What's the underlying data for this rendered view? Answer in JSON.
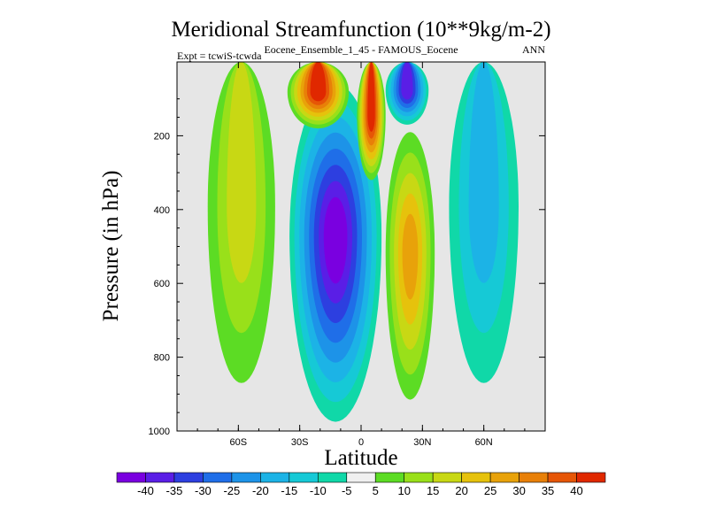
{
  "chart_data": {
    "type": "contour",
    "title": "Meridional Streamfunction (10**9kg/m-2)",
    "subtitle": "Eocene_Ensemble_1_45 - FAMOUS_Eocene",
    "experiment_label": "Expt = tcwiS-tcwda",
    "season_label": "ANN",
    "xlabel": "Latitude",
    "ylabel": "Pressure (in hPa)",
    "xlim": [
      -90,
      90
    ],
    "ylim": [
      0,
      1000
    ],
    "y_reversed": true,
    "x_ticks": [
      {
        "value": -60,
        "label": "60S"
      },
      {
        "value": -30,
        "label": "30S"
      },
      {
        "value": 0,
        "label": "0"
      },
      {
        "value": 30,
        "label": "30N"
      },
      {
        "value": 60,
        "label": "60N"
      }
    ],
    "y_ticks": [
      {
        "value": 200,
        "label": "200"
      },
      {
        "value": 400,
        "label": "400"
      },
      {
        "value": 600,
        "label": "600"
      },
      {
        "value": 800,
        "label": "800"
      },
      {
        "value": 1000,
        "label": "1000"
      }
    ],
    "colorbar": {
      "labels": [
        "-40",
        "-35",
        "-30",
        "-25",
        "-20",
        "-15",
        "-10",
        "-5",
        "5",
        "10",
        "15",
        "20",
        "25",
        "30",
        "35",
        "40"
      ],
      "colors": [
        "#7a00e0",
        "#5a1ee6",
        "#2d3fe0",
        "#1f6ee8",
        "#1d93e8",
        "#1cb3e6",
        "#16c9d6",
        "#10d8a8",
        "#f0f0f0",
        "#5cdc24",
        "#99e01a",
        "#c8d814",
        "#e6c20c",
        "#e8a20a",
        "#e88008",
        "#e65606",
        "#e02800"
      ]
    },
    "cells": [
      {
        "name": "south-outer-cell",
        "sign": "positive",
        "peak": 15,
        "lat_range": [
          -75,
          -42
        ],
        "pressure_range": [
          0,
          870
        ]
      },
      {
        "name": "south-hadley-cell",
        "sign": "negative",
        "peak": -40,
        "lat_range": [
          -35,
          10
        ],
        "pressure_range": [
          60,
          975
        ]
      },
      {
        "name": "upper-south-positive-cell",
        "sign": "positive",
        "peak": 40,
        "lat_range": [
          -36,
          -6
        ],
        "pressure_range": [
          0,
          180
        ]
      },
      {
        "name": "equatorial-upper-positive-cell",
        "sign": "positive",
        "peak": 40,
        "lat_range": [
          -2,
          12
        ],
        "pressure_range": [
          0,
          320
        ]
      },
      {
        "name": "north-upper-negative-cell",
        "sign": "negative",
        "peak": -35,
        "lat_range": [
          12,
          33
        ],
        "pressure_range": [
          0,
          170
        ]
      },
      {
        "name": "north-hadley-cell",
        "sign": "positive",
        "peak": 25,
        "lat_range": [
          12,
          36
        ],
        "pressure_range": [
          190,
          915
        ]
      },
      {
        "name": "north-outer-cell",
        "sign": "negative",
        "peak": -15,
        "lat_range": [
          43,
          77
        ],
        "pressure_range": [
          0,
          870
        ]
      }
    ],
    "colormap_name": "BlueWhiteOrangeRed"
  }
}
